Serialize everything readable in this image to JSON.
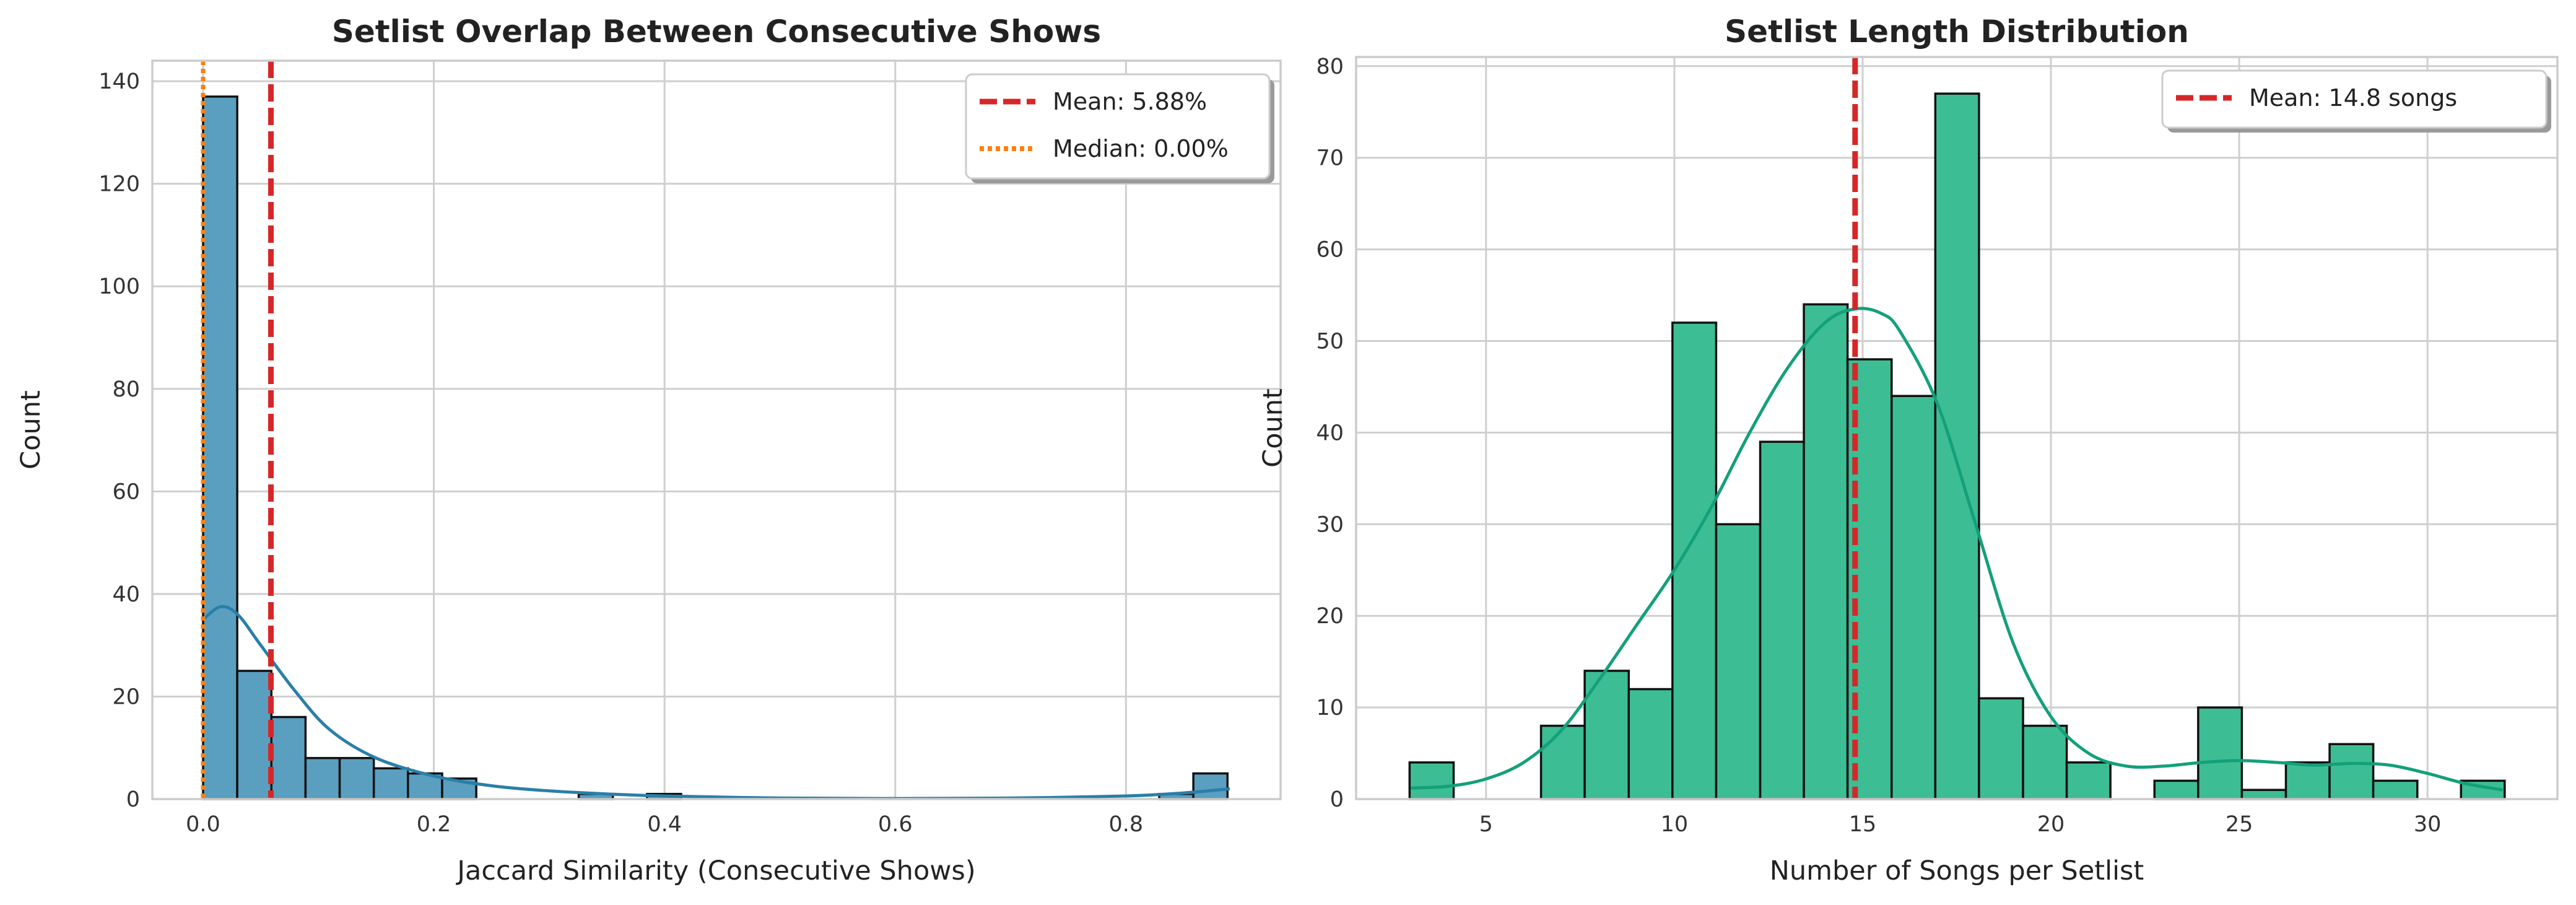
{
  "colors": {
    "hist_left": "#5a9fc0",
    "kde_left": "#2a7fa8",
    "hist_right": "#3dbd94",
    "kde_right": "#13a07a",
    "mean_line": "#d62728",
    "median_line": "#ff7f0e",
    "grid": "#cfcfcf",
    "spine": "#cccccc"
  },
  "chart_data": [
    {
      "type": "histogram",
      "title": "Setlist Overlap Between Consecutive Shows",
      "xlabel": "Jaccard Similarity (Consecutive Shows)",
      "ylabel": "Count",
      "xlim": [
        -0.044,
        0.934
      ],
      "ylim": [
        0,
        144
      ],
      "xticks": [
        0.0,
        0.2,
        0.4,
        0.6,
        0.8
      ],
      "xtick_labels": [
        "0.0",
        "0.2",
        "0.4",
        "0.6",
        "0.8"
      ],
      "yticks": [
        0,
        20,
        40,
        60,
        80,
        100,
        120,
        140
      ],
      "ytick_labels": [
        "0",
        "20",
        "40",
        "60",
        "80",
        "100",
        "120",
        "140"
      ],
      "bin_start": 0.0,
      "bin_width": 0.0296,
      "counts": [
        137,
        25,
        16,
        8,
        8,
        6,
        5,
        4,
        0,
        0,
        0,
        1,
        0,
        1,
        0,
        0,
        0,
        0,
        0,
        0,
        0,
        0,
        0,
        0,
        0,
        0,
        0,
        0,
        1,
        5
      ],
      "kde": {
        "x": [
          0.0,
          0.015,
          0.03,
          0.05,
          0.08,
          0.11,
          0.15,
          0.2,
          0.25,
          0.3,
          0.35,
          0.4,
          0.5,
          0.6,
          0.7,
          0.8,
          0.85,
          0.89
        ],
        "y": [
          35,
          37.5,
          36,
          30,
          21,
          13.5,
          8,
          4.5,
          2.6,
          1.6,
          1.0,
          0.6,
          0.2,
          0.1,
          0.2,
          0.6,
          1.2,
          2.0
        ]
      },
      "lines": [
        {
          "type": "mean",
          "x": 0.0588,
          "label": "Mean: 5.88%"
        },
        {
          "type": "median",
          "x": 0.0,
          "label": "Median: 0.00%"
        }
      ],
      "legend_position": "upper-right",
      "grid": true
    },
    {
      "type": "histogram",
      "title": "Setlist Length Distribution",
      "xlabel": "Number of Songs per Setlist",
      "ylabel": "Count",
      "xlim": [
        1.55,
        33.45
      ],
      "ylim": [
        0,
        81
      ],
      "xticks": [
        5,
        10,
        15,
        20,
        25,
        30
      ],
      "xtick_labels": [
        "5",
        "10",
        "15",
        "20",
        "25",
        "30"
      ],
      "yticks": [
        0,
        10,
        20,
        30,
        40,
        50,
        60,
        70,
        80
      ],
      "ytick_labels": [
        "0",
        "10",
        "20",
        "30",
        "40",
        "50",
        "60",
        "70",
        "80"
      ],
      "bins": [
        {
          "x0": 2.97,
          "x1": 4.14,
          "count": 4
        },
        {
          "x0": 6.46,
          "x1": 7.62,
          "count": 8
        },
        {
          "x0": 7.62,
          "x1": 8.79,
          "count": 14
        },
        {
          "x0": 8.79,
          "x1": 9.95,
          "count": 12
        },
        {
          "x0": 9.95,
          "x1": 11.11,
          "count": 52
        },
        {
          "x0": 11.11,
          "x1": 12.28,
          "count": 30
        },
        {
          "x0": 12.28,
          "x1": 13.44,
          "count": 39
        },
        {
          "x0": 13.44,
          "x1": 14.6,
          "count": 54
        },
        {
          "x0": 14.6,
          "x1": 15.77,
          "count": 48
        },
        {
          "x0": 15.77,
          "x1": 16.93,
          "count": 44
        },
        {
          "x0": 16.93,
          "x1": 18.09,
          "count": 77
        },
        {
          "x0": 18.09,
          "x1": 19.26,
          "count": 11
        },
        {
          "x0": 19.26,
          "x1": 20.42,
          "count": 8
        },
        {
          "x0": 20.42,
          "x1": 21.58,
          "count": 4
        },
        {
          "x0": 22.75,
          "x1": 23.91,
          "count": 2
        },
        {
          "x0": 23.91,
          "x1": 25.07,
          "count": 10
        },
        {
          "x0": 25.07,
          "x1": 26.24,
          "count": 1
        },
        {
          "x0": 26.24,
          "x1": 27.4,
          "count": 4
        },
        {
          "x0": 27.4,
          "x1": 28.56,
          "count": 6
        },
        {
          "x0": 28.56,
          "x1": 29.73,
          "count": 2
        },
        {
          "x0": 30.89,
          "x1": 32.05,
          "count": 2
        }
      ],
      "kde": {
        "x": [
          3,
          4,
          5,
          6,
          7,
          8,
          9,
          10,
          11,
          12,
          13,
          14,
          14.8,
          15.5,
          16,
          17,
          18,
          19,
          20,
          21,
          22,
          23,
          24,
          25,
          26,
          27,
          28,
          29,
          30,
          31,
          32
        ],
        "y": [
          1.2,
          1.4,
          2.2,
          4,
          7.5,
          13,
          19,
          25,
          32,
          40,
          47,
          52,
          53.5,
          53,
          51,
          43,
          30,
          17,
          9,
          5,
          3.6,
          3.6,
          4,
          4.2,
          4,
          3.7,
          3.9,
          3.7,
          2.8,
          1.7,
          1.0
        ]
      },
      "lines": [
        {
          "type": "mean",
          "x": 14.8,
          "label": "Mean: 14.8 songs"
        }
      ],
      "legend_position": "upper-right",
      "grid": true
    }
  ]
}
